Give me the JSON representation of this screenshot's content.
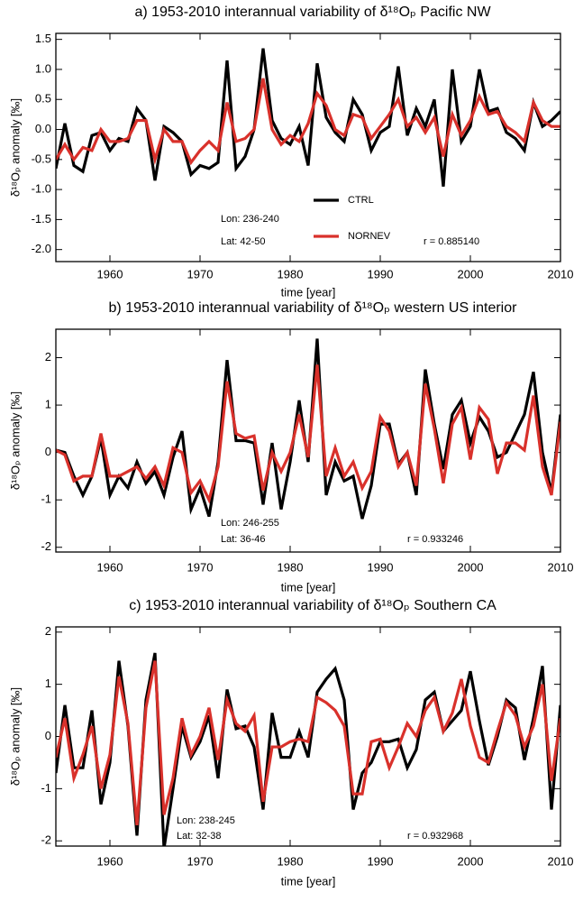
{
  "chart_data": [
    {
      "type": "line",
      "title": "a) 1953-2010 interannual variability of δ¹⁸Oₚ Pacific NW",
      "x_label": "time [year]",
      "y_label": "δ¹⁸Oₚ anomaly [‰]",
      "x": [
        1954,
        1955,
        1956,
        1957,
        1958,
        1959,
        1960,
        1961,
        1962,
        1963,
        1964,
        1965,
        1966,
        1967,
        1968,
        1969,
        1970,
        1971,
        1972,
        1973,
        1974,
        1975,
        1976,
        1977,
        1978,
        1979,
        1980,
        1981,
        1982,
        1983,
        1984,
        1985,
        1986,
        1987,
        1988,
        1989,
        1990,
        1991,
        1992,
        1993,
        1994,
        1995,
        1996,
        1997,
        1998,
        1999,
        2000,
        2001,
        2002,
        2003,
        2004,
        2005,
        2006,
        2007,
        2008,
        2009,
        2010
      ],
      "xlim": [
        1954,
        2010
      ],
      "xticks": [
        1960,
        1970,
        1980,
        1990,
        2000,
        2010
      ],
      "ylim": [
        -2.2,
        1.6
      ],
      "yticks": [
        {
          "value": -2,
          "label": "-2.0"
        },
        {
          "value": -1.5,
          "label": "-1.5"
        },
        {
          "value": -1,
          "label": "-1.0"
        },
        {
          "value": -0.5,
          "label": "-0.5"
        },
        {
          "value": 0,
          "label": "0.0"
        },
        {
          "value": 0.5,
          "label": "0.5"
        },
        {
          "value": 1,
          "label": "1.0"
        },
        {
          "value": 1.5,
          "label": "1.5"
        }
      ],
      "legend": true,
      "series": [
        {
          "name": "CTRL",
          "color": "#000000",
          "values": [
            -0.65,
            0.1,
            -0.6,
            -0.7,
            -0.1,
            -0.05,
            -0.35,
            -0.15,
            -0.2,
            0.35,
            0.15,
            -0.85,
            0.05,
            -0.05,
            -0.2,
            -0.75,
            -0.6,
            -0.65,
            -0.55,
            1.15,
            -0.65,
            -0.45,
            0.0,
            1.35,
            0.15,
            -0.15,
            -0.25,
            0.05,
            -0.6,
            1.1,
            0.2,
            -0.05,
            -0.2,
            0.5,
            0.25,
            -0.35,
            -0.05,
            0.05,
            1.05,
            -0.1,
            0.35,
            0.05,
            0.5,
            -0.95,
            1.0,
            -0.2,
            0.05,
            1.0,
            0.3,
            0.35,
            -0.05,
            -0.15,
            -0.35,
            0.45,
            0.05,
            0.15,
            0.3
          ]
        },
        {
          "name": "NORNEV",
          "color": "#d9312b",
          "values": [
            -0.5,
            -0.25,
            -0.5,
            -0.3,
            -0.35,
            0.0,
            -0.2,
            -0.2,
            -0.15,
            0.15,
            0.15,
            -0.5,
            0.0,
            -0.2,
            -0.2,
            -0.55,
            -0.35,
            -0.2,
            -0.35,
            0.45,
            -0.2,
            -0.15,
            0.0,
            0.85,
            0.0,
            -0.25,
            -0.1,
            -0.2,
            0.1,
            0.6,
            0.4,
            0.0,
            -0.1,
            0.25,
            0.2,
            -0.15,
            0.05,
            0.25,
            0.5,
            0.05,
            0.2,
            -0.05,
            0.2,
            -0.45,
            0.25,
            -0.1,
            0.15,
            0.55,
            0.25,
            0.3,
            0.05,
            -0.05,
            -0.2,
            0.45,
            0.15,
            0.05,
            0.05
          ]
        }
      ],
      "annotations": [
        "Lon: 236-240",
        "Lat: 42-50",
        "r = 0.885140"
      ]
    },
    {
      "type": "line",
      "title": "b) 1953-2010 interannual variability of δ¹⁸Oₚ western US interior",
      "x_label": "time [year]",
      "y_label": "δ¹⁸Oₚ anomaly [‰]",
      "x": [
        1954,
        1955,
        1956,
        1957,
        1958,
        1959,
        1960,
        1961,
        1962,
        1963,
        1964,
        1965,
        1966,
        1967,
        1968,
        1969,
        1970,
        1971,
        1972,
        1973,
        1974,
        1975,
        1976,
        1977,
        1978,
        1979,
        1980,
        1981,
        1982,
        1983,
        1984,
        1985,
        1986,
        1987,
        1988,
        1989,
        1990,
        1991,
        1992,
        1993,
        1994,
        1995,
        1996,
        1997,
        1998,
        1999,
        2000,
        2001,
        2002,
        2003,
        2004,
        2005,
        2006,
        2007,
        2008,
        2009,
        2010
      ],
      "xlim": [
        1954,
        2010
      ],
      "xticks": [
        1960,
        1970,
        1980,
        1990,
        2000,
        2010
      ],
      "ylim": [
        -2.1,
        2.6
      ],
      "yticks": [
        -2,
        -1,
        0,
        1,
        2
      ],
      "legend": false,
      "series": [
        {
          "color": "#000000",
          "values": [
            0.05,
            0.0,
            -0.5,
            -0.9,
            -0.5,
            0.3,
            -0.9,
            -0.5,
            -0.75,
            -0.2,
            -0.65,
            -0.4,
            -0.9,
            -0.1,
            0.45,
            -1.2,
            -0.75,
            -1.35,
            -0.2,
            1.95,
            0.25,
            0.25,
            0.2,
            -1.1,
            0.2,
            -1.2,
            -0.2,
            1.1,
            -0.2,
            2.4,
            -0.9,
            -0.2,
            -0.6,
            -0.5,
            -1.4,
            -0.7,
            0.6,
            0.6,
            -0.25,
            0.0,
            -0.9,
            1.75,
            0.6,
            -0.35,
            0.8,
            1.1,
            0.2,
            0.75,
            0.45,
            -0.1,
            0.0,
            0.4,
            0.8,
            1.7,
            0.0,
            -0.85,
            0.8
          ]
        },
        {
          "color": "#d9312b",
          "values": [
            0.05,
            -0.05,
            -0.6,
            -0.5,
            -0.5,
            0.4,
            -0.5,
            -0.5,
            -0.4,
            -0.3,
            -0.55,
            -0.3,
            -0.7,
            0.1,
            0.0,
            -0.85,
            -0.6,
            -1.0,
            -0.3,
            1.5,
            0.4,
            0.3,
            0.35,
            -0.8,
            0.0,
            -0.4,
            0.0,
            0.8,
            -0.1,
            1.85,
            -0.5,
            0.1,
            -0.5,
            -0.2,
            -0.75,
            -0.4,
            0.75,
            0.45,
            -0.3,
            0.0,
            -0.7,
            1.45,
            0.5,
            -0.65,
            0.6,
            0.95,
            -0.15,
            0.95,
            0.7,
            -0.45,
            0.2,
            0.2,
            0.05,
            1.2,
            -0.3,
            -0.9,
            0.65
          ]
        }
      ],
      "annotations": [
        "Lon: 246-255",
        "Lat: 36-46",
        "r = 0.933246"
      ]
    },
    {
      "type": "line",
      "title": "c) 1953-2010 interannual variability of δ¹⁸Oₚ Southern CA",
      "x_label": "time [year]",
      "y_label": "δ¹⁸Oₚ anomaly [‰]",
      "x": [
        1954,
        1955,
        1956,
        1957,
        1958,
        1959,
        1960,
        1961,
        1962,
        1963,
        1964,
        1965,
        1966,
        1967,
        1968,
        1969,
        1970,
        1971,
        1972,
        1973,
        1974,
        1975,
        1976,
        1977,
        1978,
        1979,
        1980,
        1981,
        1982,
        1983,
        1984,
        1985,
        1986,
        1987,
        1988,
        1989,
        1990,
        1991,
        1992,
        1993,
        1994,
        1995,
        1996,
        1997,
        1998,
        1999,
        2000,
        2001,
        2002,
        2003,
        2004,
        2005,
        2006,
        2007,
        2008,
        2009,
        2010
      ],
      "xlim": [
        1954,
        2010
      ],
      "xticks": [
        1960,
        1970,
        1980,
        1990,
        2000,
        2010
      ],
      "ylim": [
        -2.1,
        2.1
      ],
      "yticks": [
        -2,
        -1,
        0,
        1,
        2
      ],
      "legend": false,
      "series": [
        {
          "color": "#000000",
          "values": [
            -0.7,
            0.6,
            -0.6,
            -0.6,
            0.5,
            -1.3,
            -0.5,
            1.45,
            0.2,
            -1.9,
            0.7,
            1.6,
            -2.15,
            -1.0,
            0.2,
            -0.4,
            -0.1,
            0.4,
            -0.8,
            0.9,
            0.15,
            0.2,
            -0.2,
            -1.4,
            0.45,
            -0.4,
            -0.4,
            0.1,
            -0.4,
            0.85,
            1.1,
            1.3,
            0.7,
            -1.4,
            -0.7,
            -0.5,
            -0.1,
            -0.1,
            -0.05,
            -0.6,
            -0.25,
            0.7,
            0.85,
            0.1,
            0.3,
            0.5,
            1.25,
            0.3,
            -0.55,
            0.0,
            0.7,
            0.55,
            -0.45,
            0.35,
            1.35,
            -1.4,
            0.6
          ]
        },
        {
          "color": "#d9312b",
          "values": [
            -0.4,
            0.35,
            -0.8,
            -0.35,
            0.2,
            -1.0,
            -0.35,
            1.15,
            0.25,
            -1.7,
            0.55,
            1.45,
            -1.5,
            -0.8,
            0.35,
            -0.35,
            0.0,
            0.55,
            -0.45,
            0.7,
            0.25,
            0.1,
            0.4,
            -1.25,
            -0.2,
            -0.2,
            -0.1,
            -0.05,
            -0.1,
            0.75,
            0.65,
            0.5,
            0.2,
            -1.1,
            -1.1,
            -0.1,
            -0.05,
            -0.6,
            -0.2,
            0.25,
            0.0,
            0.5,
            0.75,
            0.1,
            0.45,
            1.1,
            0.2,
            -0.4,
            -0.5,
            0.1,
            0.65,
            0.4,
            -0.2,
            0.2,
            1.0,
            -0.85,
            0.35
          ]
        }
      ],
      "annotations": [
        "Lon: 238-245",
        "Lat: 32-38",
        "r = 0.932968"
      ]
    }
  ]
}
